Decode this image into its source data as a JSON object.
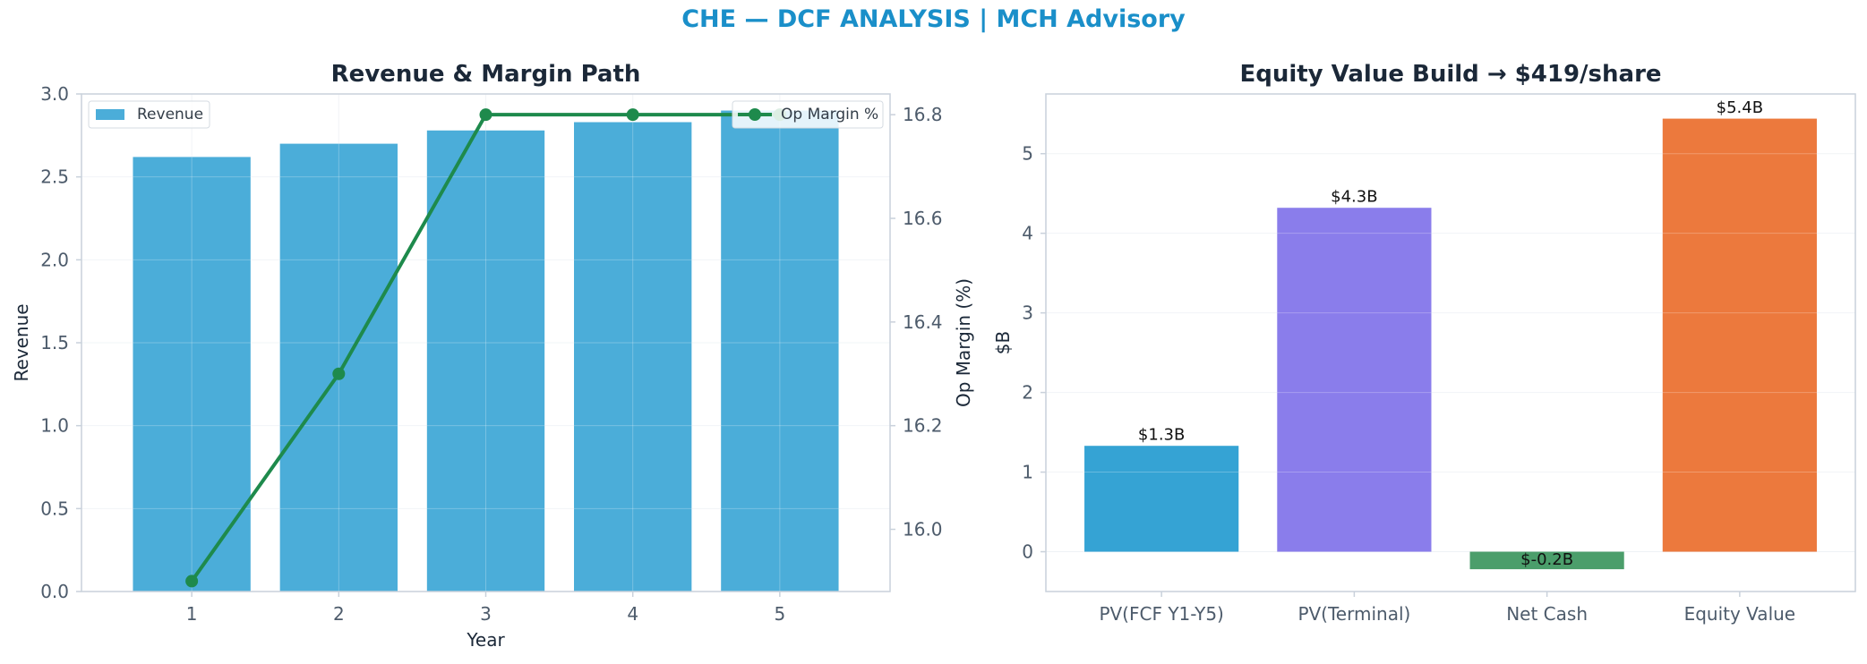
{
  "figure": {
    "title": "CHE — DCF ANALYSIS | MCH Advisory",
    "title_color": "#1a8fc9"
  },
  "chart_data": [
    {
      "type": "bar",
      "title": "Revenue & Margin Path",
      "xlabel": "Year",
      "ylabel": "Revenue",
      "y2label": "Op Margin (%)",
      "categories": [
        "1",
        "2",
        "3",
        "4",
        "5"
      ],
      "ylim": [
        0,
        3.0
      ],
      "yticks": [
        "0.0",
        "0.5",
        "1.0",
        "1.5",
        "2.0",
        "2.5",
        "3.0"
      ],
      "y2lim": [
        15.88,
        16.84
      ],
      "y2ticks": [
        "16.0",
        "16.2",
        "16.4",
        "16.6",
        "16.8"
      ],
      "grid": true,
      "series": [
        {
          "name": "Revenue",
          "type": "bar",
          "axis": "left",
          "color": "#4badd9",
          "values": [
            2.62,
            2.7,
            2.78,
            2.83,
            2.9
          ]
        },
        {
          "name": "Op Margin %",
          "type": "line",
          "axis": "right",
          "color": "#1e8a4c",
          "values": [
            15.9,
            16.3,
            16.8,
            16.8,
            16.8
          ]
        }
      ],
      "legend": [
        {
          "label": "Revenue",
          "placement": "top-left"
        },
        {
          "label": "Op Margin %",
          "placement": "top-right"
        }
      ]
    },
    {
      "type": "bar",
      "title": "Equity Value Build → $419/share",
      "xlabel": "",
      "ylabel": "$B",
      "categories": [
        "PV(FCF Y1-Y5)",
        "PV(Terminal)",
        "Net Cash",
        "Equity Value"
      ],
      "values": [
        1.33,
        4.32,
        -0.22,
        5.44
      ],
      "data_labels": [
        "$1.3B",
        "$4.3B",
        "$-0.2B",
        "$5.4B"
      ],
      "colors": [
        "#35a3d4",
        "#8a7deb",
        "#4b9e6b",
        "#ec793d"
      ],
      "ylim": [
        -0.5,
        5.75
      ],
      "yticks": [
        "0",
        "1",
        "2",
        "3",
        "4",
        "5"
      ],
      "grid": true
    }
  ]
}
